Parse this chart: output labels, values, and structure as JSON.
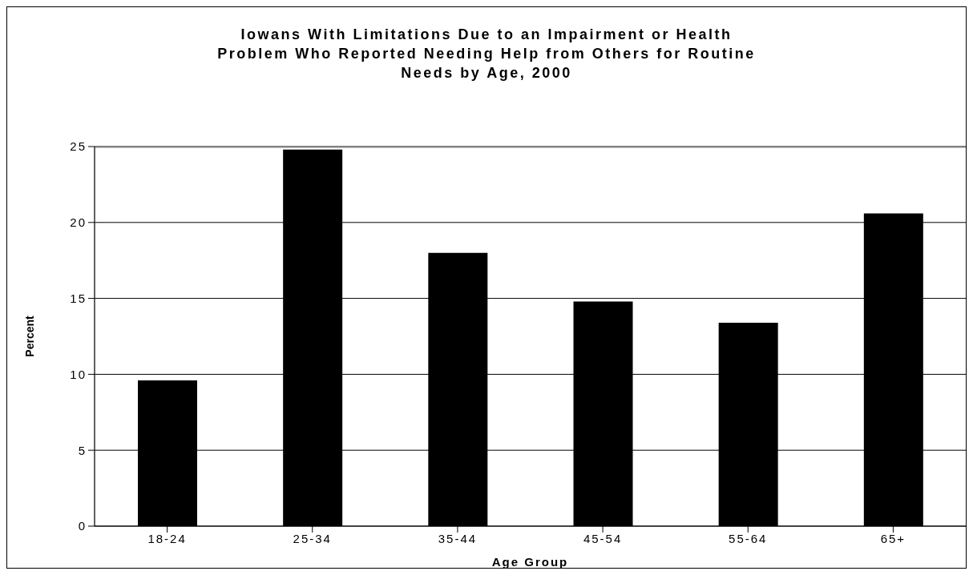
{
  "chart_data": {
    "type": "bar",
    "title": "Iowans With Limitations Due to an Impairment or Health Problem Who Reported Needing Help from Others for Routine Needs by Age, 2000",
    "xlabel": "Age Group",
    "ylabel": "Percent",
    "categories": [
      "18-24",
      "25-34",
      "35-44",
      "45-54",
      "55-64",
      "65+"
    ],
    "values": [
      9.6,
      24.8,
      18.0,
      14.8,
      13.4,
      20.6
    ],
    "color": "#000000",
    "ylim": [
      0,
      25
    ],
    "yticks": [
      0,
      5,
      10,
      15,
      20,
      25
    ],
    "grid": "y"
  }
}
